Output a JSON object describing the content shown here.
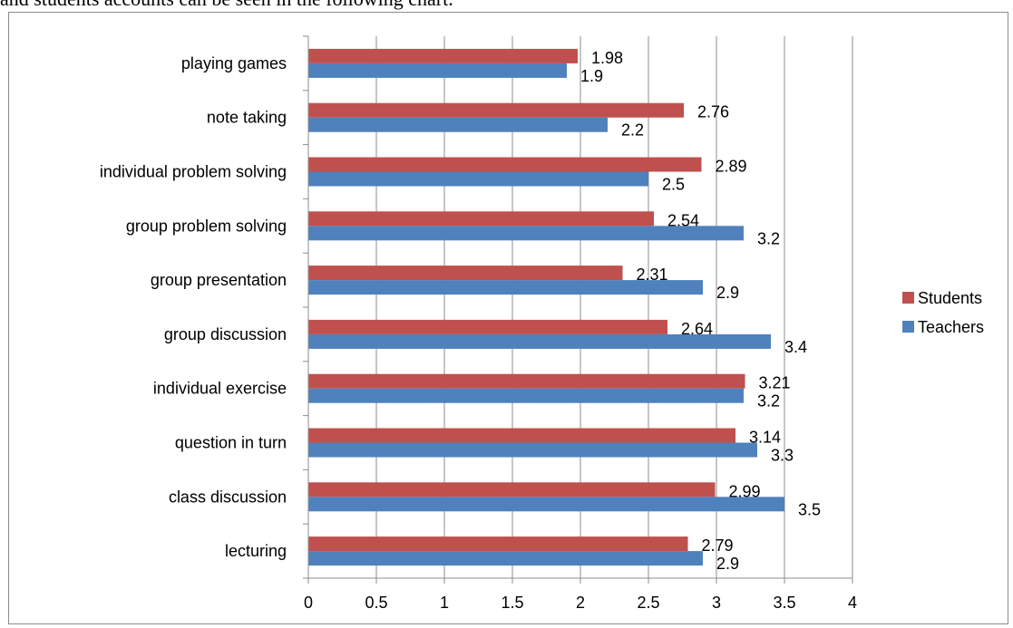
{
  "caption": "and students accounts can be seen in the following chart.",
  "chart_data": {
    "type": "bar",
    "orientation": "horizontal",
    "categories": [
      "playing games",
      "note taking",
      "individual problem solving",
      "group problem solving",
      "group presentation",
      "group discussion",
      "individual exercise",
      "question in turn",
      "class discussion",
      "lecturing"
    ],
    "series": [
      {
        "name": "Students",
        "color": "#c0504d",
        "values": [
          1.98,
          2.76,
          2.89,
          2.54,
          2.31,
          2.64,
          3.21,
          3.14,
          2.99,
          2.79
        ]
      },
      {
        "name": "Teachers",
        "color": "#4f81bd",
        "values": [
          1.9,
          2.2,
          2.5,
          3.2,
          2.9,
          3.4,
          3.2,
          3.3,
          3.5,
          2.9
        ]
      }
    ],
    "x_ticks": [
      "0",
      "0.5",
      "1",
      "1.5",
      "2",
      "2.5",
      "3",
      "3.5",
      "4"
    ],
    "xlim": [
      0,
      4
    ],
    "grid": "vertical",
    "legend": "right"
  }
}
